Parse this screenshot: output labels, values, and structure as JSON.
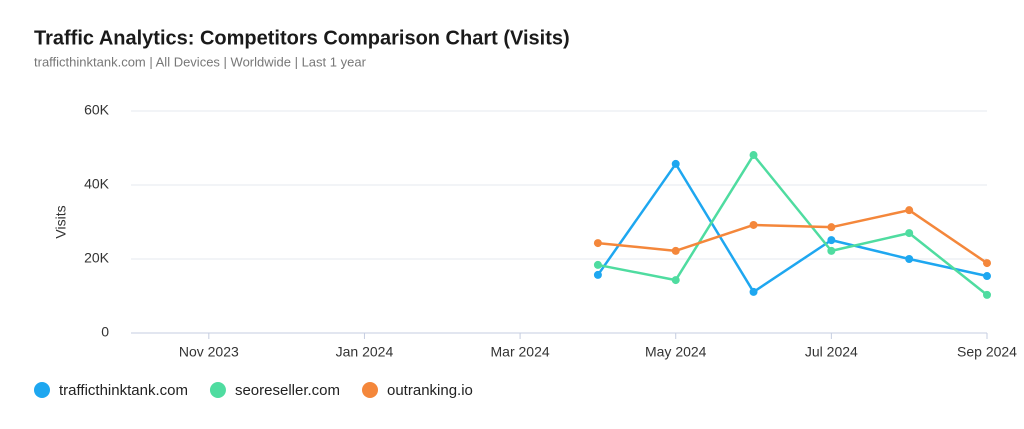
{
  "chart_data": {
    "type": "line",
    "title": "Traffic Analytics: Competitors Comparison Chart (Visits)",
    "subtitle": "trafficthinktank.com | All Devices | Worldwide | Last 1 year",
    "y_label": "Visits",
    "categories": [
      null,
      "Nov 2023",
      null,
      "Jan 2024",
      null,
      "Mar 2024",
      null,
      "May 2024",
      null,
      "Jul 2024",
      null,
      "Sep 2024"
    ],
    "series": [
      {
        "name": "trafficthinktank.com",
        "color": "#1ea7f0",
        "values": [
          null,
          null,
          null,
          null,
          null,
          null,
          15700,
          45700,
          11100,
          25100,
          20000,
          15400
        ]
      },
      {
        "name": "seoreseller.com",
        "color": "#4fdca0",
        "values": [
          null,
          null,
          null,
          null,
          null,
          null,
          18400,
          14300,
          48100,
          22200,
          27000,
          10300
        ]
      },
      {
        "name": "outranking.io",
        "color": "#f4873b",
        "values": [
          null,
          null,
          null,
          null,
          null,
          null,
          24300,
          22200,
          29200,
          28600,
          33200,
          18900
        ]
      }
    ],
    "ylim": [
      0,
      60000
    ],
    "yticks": [
      0,
      {
        "value": 20000,
        "label": "20K"
      },
      {
        "value": 40000,
        "label": "40K"
      },
      {
        "value": 60000,
        "label": "60K"
      }
    ],
    "grid": true
  }
}
